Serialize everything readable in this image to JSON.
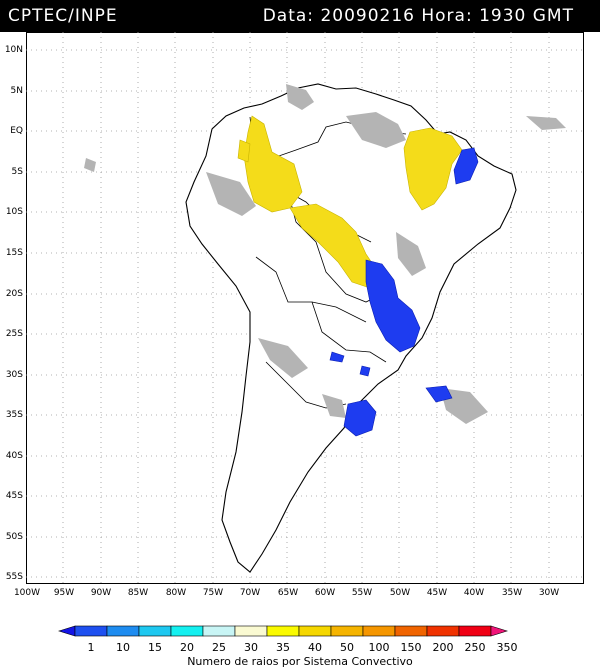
{
  "header": {
    "agency": "CPTEC/INPE",
    "datetime": "Data: 20090216 Hora: 1930 GMT"
  },
  "map": {
    "lat_labels": [
      "10N",
      "5N",
      "EQ",
      "5S",
      "10S",
      "15S",
      "20S",
      "25S",
      "30S",
      "35S",
      "40S",
      "45S",
      "50S",
      "55S"
    ],
    "lon_labels": [
      "100W",
      "95W",
      "90W",
      "85W",
      "80W",
      "75W",
      "70W",
      "65W",
      "60W",
      "55W",
      "50W",
      "45W",
      "40W",
      "35W",
      "30W"
    ],
    "colors": {
      "background": "#ffffff",
      "land_outline": "#000000",
      "grid": "#9a9a9a",
      "cloud_gray": "#b4b4b4",
      "yellow_system": "#f4dc1a",
      "blue_system": "#1e3cf0"
    }
  },
  "legend": {
    "labels": [
      "1",
      "10",
      "15",
      "20",
      "25",
      "30",
      "35",
      "40",
      "50",
      "100",
      "150",
      "200",
      "250",
      "350"
    ],
    "colors": [
      "#1414e6",
      "#1e50f0",
      "#1e8cf0",
      "#1ec8f0",
      "#14f0f0",
      "#c8f5f5",
      "#fafad2",
      "#fafa00",
      "#f5d700",
      "#f5b400",
      "#f59600",
      "#f06400",
      "#f03200",
      "#f00014",
      "#f01478"
    ],
    "caption": "Numero de raios por Sistema Convectivo"
  }
}
